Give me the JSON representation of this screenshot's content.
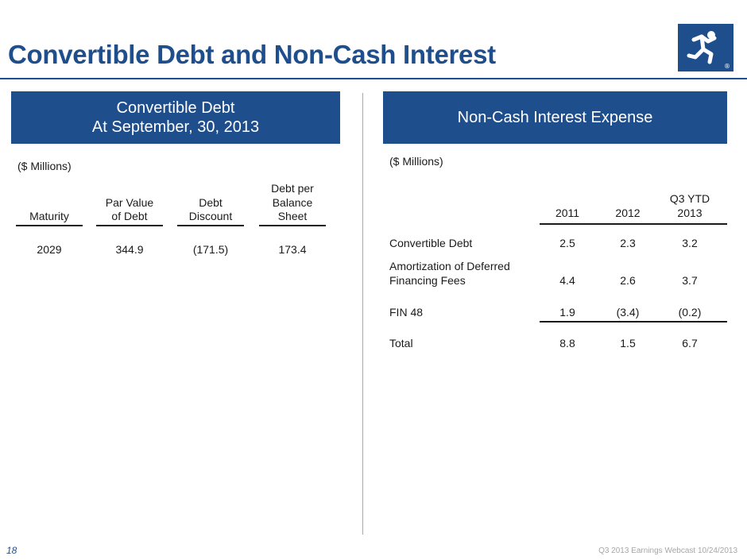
{
  "slide": {
    "title": "Convertible Debt and Non-Cash Interest",
    "page_number": "18",
    "footer": "Q3 2013 Earnings Webcast 10/24/2013",
    "logo_icon": "running-figure-icon",
    "logo_mark": "®"
  },
  "left_panel": {
    "header_line1": "Convertible Debt",
    "header_line2": "At September, 30, 2013",
    "units": "($ Millions)",
    "columns": {
      "maturity": "Maturity",
      "par_value_l1": "Par Value",
      "par_value_l2": "of Debt",
      "discount_l1": "Debt",
      "discount_l2": "Discount",
      "balance_l1": "Debt per",
      "balance_l2": "Balance",
      "balance_l3": "Sheet"
    },
    "row": {
      "maturity": "2029",
      "par_value": "344.9",
      "discount": "(171.5)",
      "balance": "173.4"
    }
  },
  "right_panel": {
    "header": "Non-Cash Interest Expense",
    "units": "($ Millions)",
    "columns": {
      "y2011": "2011",
      "y2012": "2012",
      "ytd_l1": "Q3 YTD",
      "ytd_l2": "2013"
    },
    "rows": [
      {
        "label": "Convertible Debt",
        "v2011": "2.5",
        "v2012": "2.3",
        "ytd": "3.2"
      },
      {
        "label_l1": "Amortization of Deferred",
        "label_l2": "Financing Fees",
        "v2011": "4.4",
        "v2012": "2.6",
        "ytd": "3.7"
      },
      {
        "label": "FIN 48",
        "v2011": "1.9",
        "v2012": "(3.4)",
        "ytd": "(0.2)"
      },
      {
        "label": "Total",
        "v2011": "8.8",
        "v2012": "1.5",
        "ytd": "6.7"
      }
    ]
  }
}
